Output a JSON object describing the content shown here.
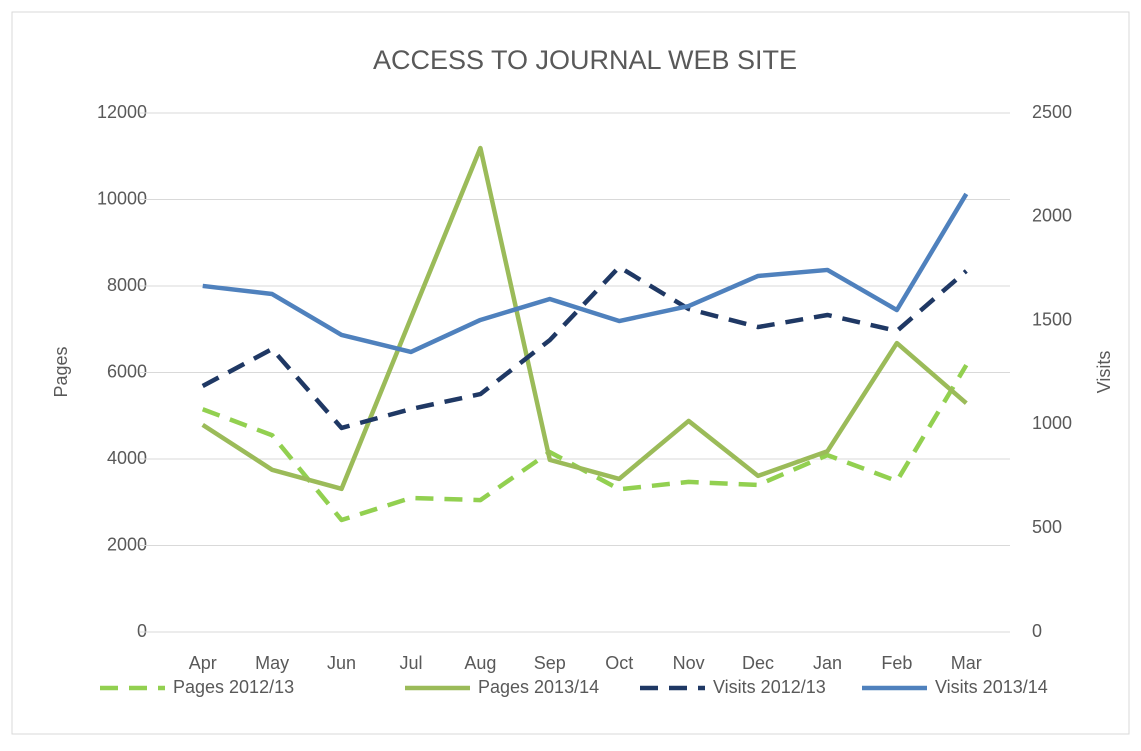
{
  "chart_data": {
    "type": "line",
    "title": "ACCESS TO JOURNAL WEB SITE",
    "categories": [
      "Apr",
      "May",
      "Jun",
      "Jul",
      "Aug",
      "Sep",
      "Oct",
      "Nov",
      "Dec",
      "Jan",
      "Feb",
      "Mar"
    ],
    "y_label": "Pages",
    "y2_label": "Visits",
    "ylim": [
      0,
      12000
    ],
    "yticks": [
      0,
      2000,
      4000,
      6000,
      8000,
      10000,
      12000
    ],
    "y2lim": [
      0,
      2500
    ],
    "y2ticks": [
      0,
      500,
      1000,
      1500,
      2000,
      2500
    ],
    "grid": true,
    "legend": "bottom",
    "series": [
      {
        "name": "Pages 2012/13",
        "color": "#92d050",
        "dashed": true,
        "values": [
          5150,
          4550,
          2590,
          3100,
          3050,
          4160,
          3300,
          3470,
          3400,
          4090,
          3490,
          6170
        ]
      },
      {
        "name": "Pages 2013/14",
        "color": "#9bbb59",
        "dashed": false,
        "values": [
          4790,
          3750,
          3310,
          7260,
          11190,
          3980,
          3540,
          4880,
          3610,
          4180,
          6680,
          5290
        ]
      },
      {
        "name": "Visits 2012/13",
        "color": "#1f3864",
        "dashed": true,
        "axis": "y2",
        "values": [
          1185,
          1363,
          983,
          1074,
          1146,
          1406,
          1758,
          1556,
          1469,
          1527,
          1450,
          1739
        ]
      },
      {
        "name": "Visits 2013/14",
        "color": "#4f81bd",
        "dashed": false,
        "axis": "y2",
        "values": [
          1667,
          1628,
          1431,
          1349,
          1503,
          1604,
          1498,
          1570,
          1715,
          1744,
          1551,
          2110
        ]
      }
    ]
  }
}
